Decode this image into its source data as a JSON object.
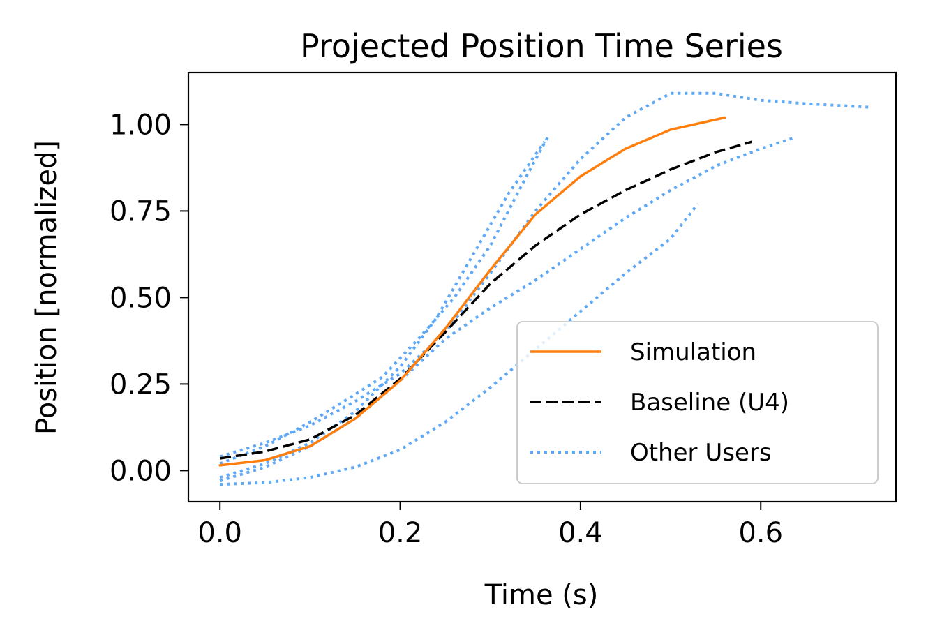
{
  "chart_data": {
    "type": "line",
    "title": "Projected Position Time Series",
    "xlabel": "Time (s)",
    "ylabel": "Position [normalized]",
    "xlim": [
      -0.035,
      0.75
    ],
    "ylim": [
      -0.09,
      1.15
    ],
    "xticks": [
      0.0,
      0.2,
      0.4,
      0.6
    ],
    "xtick_labels": [
      "0.0",
      "0.2",
      "0.4",
      "0.6"
    ],
    "yticks": [
      0.0,
      0.25,
      0.5,
      0.75,
      1.0
    ],
    "ytick_labels": [
      "0.00",
      "0.25",
      "0.50",
      "0.75",
      "1.00"
    ],
    "grid": false,
    "legend_position": "lower-right",
    "series": [
      {
        "name": "Simulation",
        "color": "#ff7f0e",
        "style": "solid",
        "in_legend": true,
        "points": [
          [
            0.0,
            0.015
          ],
          [
            0.05,
            0.03
          ],
          [
            0.1,
            0.07
          ],
          [
            0.15,
            0.15
          ],
          [
            0.2,
            0.26
          ],
          [
            0.25,
            0.41
          ],
          [
            0.3,
            0.58
          ],
          [
            0.35,
            0.74
          ],
          [
            0.4,
            0.85
          ],
          [
            0.45,
            0.93
          ],
          [
            0.5,
            0.985
          ],
          [
            0.56,
            1.02
          ]
        ]
      },
      {
        "name": "Baseline (U4)",
        "color": "#000000",
        "style": "dashed",
        "in_legend": true,
        "points": [
          [
            0.0,
            0.035
          ],
          [
            0.05,
            0.055
          ],
          [
            0.1,
            0.09
          ],
          [
            0.15,
            0.16
          ],
          [
            0.2,
            0.265
          ],
          [
            0.25,
            0.4
          ],
          [
            0.3,
            0.54
          ],
          [
            0.35,
            0.65
          ],
          [
            0.4,
            0.74
          ],
          [
            0.45,
            0.81
          ],
          [
            0.5,
            0.87
          ],
          [
            0.55,
            0.92
          ],
          [
            0.59,
            0.95
          ]
        ]
      },
      {
        "name": "Other Users",
        "color": "#5fa8f5",
        "style": "dotted",
        "in_legend": true,
        "points": [
          [
            0.0,
            0.04
          ],
          [
            0.05,
            0.08
          ],
          [
            0.1,
            0.13
          ],
          [
            0.15,
            0.2
          ],
          [
            0.2,
            0.28
          ],
          [
            0.25,
            0.4
          ],
          [
            0.3,
            0.57
          ],
          [
            0.35,
            0.75
          ],
          [
            0.4,
            0.9
          ],
          [
            0.45,
            1.02
          ],
          [
            0.5,
            1.09
          ],
          [
            0.55,
            1.09
          ],
          [
            0.6,
            1.07
          ],
          [
            0.65,
            1.06
          ],
          [
            0.72,
            1.05
          ]
        ]
      },
      {
        "name": "Other Users",
        "color": "#5fa8f5",
        "style": "dotted",
        "in_legend": false,
        "points": [
          [
            0.0,
            0.02
          ],
          [
            0.05,
            0.07
          ],
          [
            0.1,
            0.14
          ],
          [
            0.15,
            0.22
          ],
          [
            0.18,
            0.27
          ],
          [
            0.22,
            0.38
          ],
          [
            0.26,
            0.5
          ],
          [
            0.3,
            0.65
          ],
          [
            0.34,
            0.85
          ],
          [
            0.365,
            0.97
          ]
        ]
      },
      {
        "name": "Other Users",
        "color": "#5fa8f5",
        "style": "dotted",
        "in_legend": false,
        "points": [
          [
            0.0,
            -0.02
          ],
          [
            0.05,
            0.02
          ],
          [
            0.1,
            0.08
          ],
          [
            0.15,
            0.17
          ],
          [
            0.2,
            0.3
          ],
          [
            0.24,
            0.44
          ],
          [
            0.28,
            0.62
          ],
          [
            0.32,
            0.8
          ],
          [
            0.36,
            0.95
          ]
        ]
      },
      {
        "name": "Other Users",
        "color": "#5fa8f5",
        "style": "dotted",
        "in_legend": false,
        "points": [
          [
            0.0,
            -0.03
          ],
          [
            0.05,
            0.01
          ],
          [
            0.1,
            0.07
          ],
          [
            0.15,
            0.15
          ],
          [
            0.2,
            0.26
          ],
          [
            0.25,
            0.38
          ],
          [
            0.3,
            0.47
          ],
          [
            0.35,
            0.55
          ],
          [
            0.4,
            0.64
          ],
          [
            0.45,
            0.73
          ],
          [
            0.5,
            0.81
          ],
          [
            0.55,
            0.88
          ],
          [
            0.6,
            0.93
          ],
          [
            0.635,
            0.96
          ]
        ]
      },
      {
        "name": "Other Users",
        "color": "#5fa8f5",
        "style": "dotted",
        "in_legend": false,
        "points": [
          [
            0.0,
            -0.04
          ],
          [
            0.05,
            -0.035
          ],
          [
            0.1,
            -0.02
          ],
          [
            0.15,
            0.01
          ],
          [
            0.2,
            0.06
          ],
          [
            0.25,
            0.14
          ],
          [
            0.3,
            0.24
          ],
          [
            0.35,
            0.35
          ],
          [
            0.4,
            0.46
          ],
          [
            0.45,
            0.57
          ],
          [
            0.5,
            0.67
          ],
          [
            0.53,
            0.77
          ]
        ]
      }
    ]
  }
}
